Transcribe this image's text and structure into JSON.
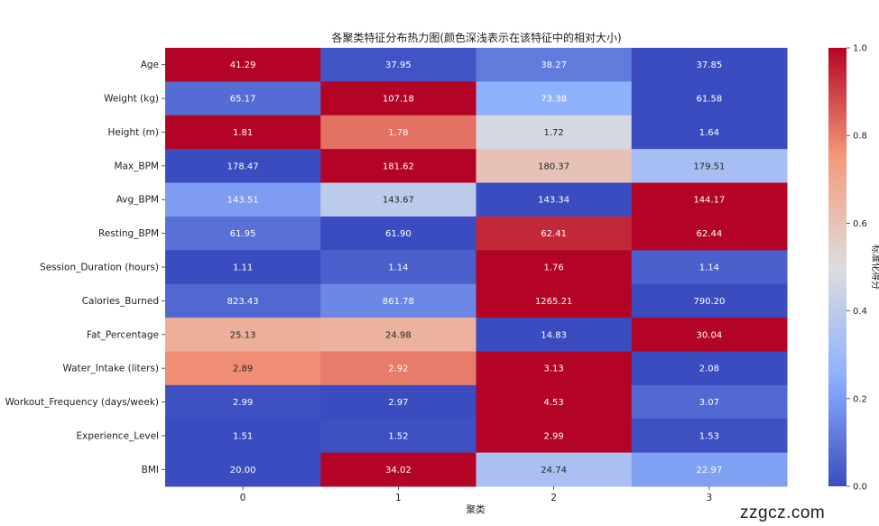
{
  "chart_data": {
    "type": "heatmap",
    "title": "各聚类特征分布热力图(颜色深浅表示在该特征中的相对大小)",
    "xlabel": "聚类",
    "ylabel": "",
    "x_categories": [
      "0",
      "1",
      "2",
      "3"
    ],
    "y_categories": [
      "Age",
      "Weight (kg)",
      "Height (m)",
      "Max_BPM",
      "Avg_BPM",
      "Resting_BPM",
      "Session_Duration (hours)",
      "Calories_Burned",
      "Fat_Percentage",
      "Water_Intake (liters)",
      "Workout_Frequency (days/week)",
      "Experience_Level",
      "BMI"
    ],
    "values": [
      [
        "41.29",
        "37.95",
        "38.27",
        "37.85"
      ],
      [
        "65.17",
        "107.18",
        "73.38",
        "61.58"
      ],
      [
        "1.81",
        "1.78",
        "1.72",
        "1.64"
      ],
      [
        "178.47",
        "181.62",
        "180.37",
        "179.51"
      ],
      [
        "143.51",
        "143.67",
        "143.34",
        "144.17"
      ],
      [
        "61.95",
        "61.90",
        "62.41",
        "62.44"
      ],
      [
        "1.11",
        "1.14",
        "1.76",
        "1.14"
      ],
      [
        "823.43",
        "861.78",
        "1265.21",
        "790.20"
      ],
      [
        "25.13",
        "24.98",
        "14.83",
        "30.04"
      ],
      [
        "2.89",
        "2.92",
        "3.13",
        "2.08"
      ],
      [
        "2.99",
        "2.97",
        "4.53",
        "3.07"
      ],
      [
        "1.51",
        "1.52",
        "2.99",
        "1.53"
      ],
      [
        "20.00",
        "34.02",
        "24.74",
        "22.97"
      ]
    ],
    "normalized": [
      [
        1.0,
        0.02,
        0.12,
        0.0
      ],
      [
        0.08,
        1.0,
        0.26,
        0.0
      ],
      [
        1.0,
        0.82,
        0.47,
        0.0
      ],
      [
        0.0,
        1.0,
        0.6,
        0.33
      ],
      [
        0.2,
        0.4,
        0.0,
        1.0
      ],
      [
        0.09,
        0.0,
        0.94,
        1.0
      ],
      [
        0.0,
        0.05,
        1.0,
        0.05
      ],
      [
        0.07,
        0.15,
        1.0,
        0.0
      ],
      [
        0.67,
        0.66,
        0.0,
        1.0
      ],
      [
        0.77,
        0.8,
        1.0,
        0.0
      ],
      [
        0.01,
        0.0,
        1.0,
        0.07
      ],
      [
        0.0,
        0.01,
        1.0,
        0.01
      ],
      [
        0.0,
        1.0,
        0.34,
        0.21
      ]
    ],
    "colorbar": {
      "label": "标准化得分",
      "ticks": [
        "0.0",
        "0.2",
        "0.4",
        "0.6",
        "0.8",
        "1.0"
      ],
      "range": [
        0,
        1
      ]
    },
    "colormap": "coolwarm"
  },
  "watermark": "zzgcz.com"
}
